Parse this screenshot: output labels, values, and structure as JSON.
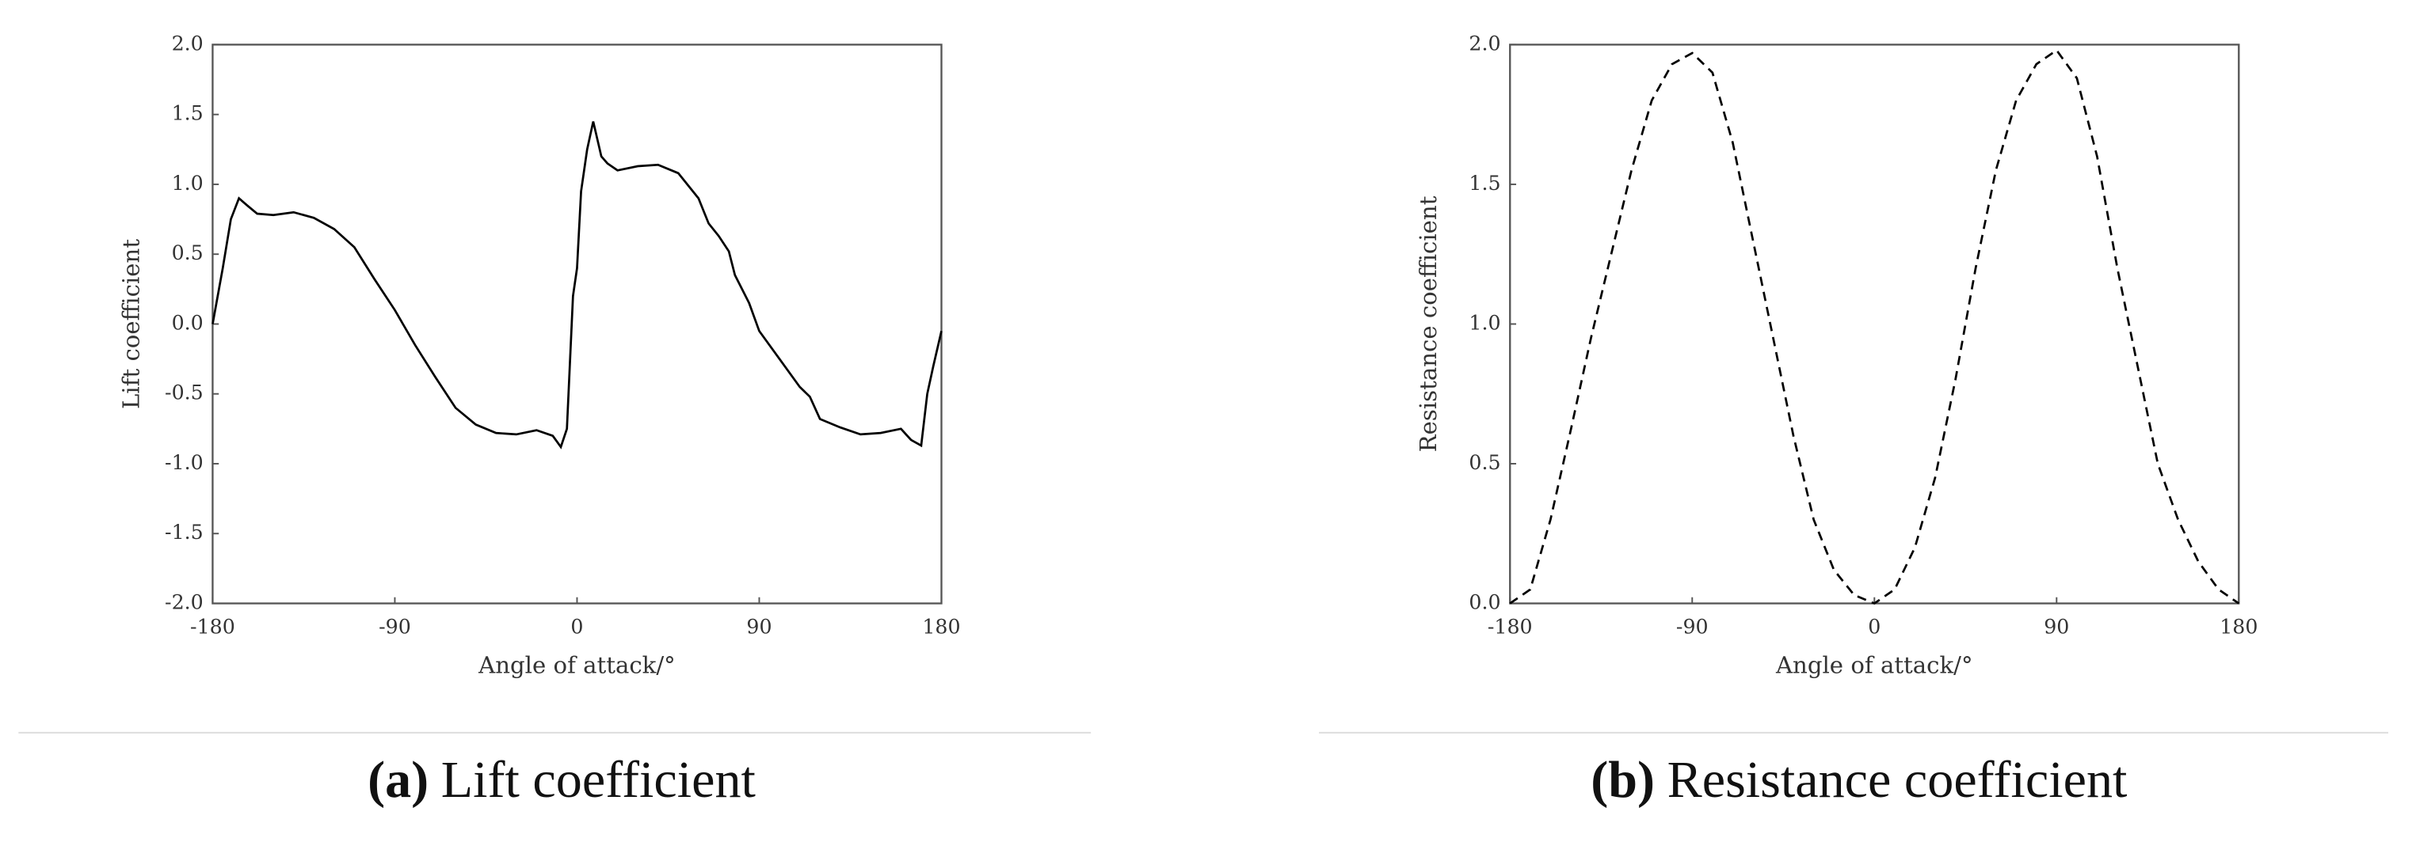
{
  "chart_data": [
    {
      "type": "line",
      "caption_label": "(a)",
      "caption": "Lift coefficient",
      "xlabel": "Angle of attack/°",
      "ylabel": "Lift coefficient",
      "x": [
        -180,
        -175,
        -171,
        -167,
        -163,
        -158,
        -150,
        -140,
        -130,
        -120,
        -110,
        -100,
        -90,
        -80,
        -70,
        -60,
        -50,
        -40,
        -30,
        -20,
        -12,
        -8,
        -5,
        -2,
        0,
        2,
        5,
        8,
        12,
        15,
        20,
        30,
        40,
        50,
        60,
        65,
        70,
        75,
        78,
        85,
        90,
        100,
        110,
        115,
        120,
        130,
        140,
        150,
        160,
        165,
        170,
        173,
        176,
        180
      ],
      "series": [
        {
          "color": "#000000",
          "dash": "none",
          "values": [
            0.0,
            0.4,
            0.75,
            0.9,
            0.85,
            0.79,
            0.78,
            0.8,
            0.76,
            0.68,
            0.55,
            0.32,
            0.1,
            -0.15,
            -0.38,
            -0.6,
            -0.72,
            -0.78,
            -0.79,
            -0.76,
            -0.8,
            -0.88,
            -0.75,
            0.2,
            0.4,
            0.95,
            1.25,
            1.45,
            1.2,
            1.15,
            1.1,
            1.13,
            1.14,
            1.08,
            0.9,
            0.72,
            0.63,
            0.52,
            0.35,
            0.15,
            -0.05,
            -0.25,
            -0.45,
            -0.52,
            -0.68,
            -0.74,
            -0.79,
            -0.78,
            -0.75,
            -0.83,
            -0.87,
            -0.5,
            -0.3,
            -0.05
          ]
        }
      ],
      "xlim": [
        -180,
        180
      ],
      "xticks": [
        -180,
        -90,
        0,
        90,
        180
      ],
      "ylim": [
        -2,
        2
      ],
      "yticks": [
        {
          "value": -2,
          "label": "-2.0"
        },
        {
          "value": -1.5,
          "label": "-1.5"
        },
        {
          "value": -1,
          "label": "-1.0"
        },
        {
          "value": -0.5,
          "label": "-0.5"
        },
        {
          "value": 0,
          "label": "0.0"
        },
        {
          "value": 0.5,
          "label": "0.5"
        },
        {
          "value": 1,
          "label": "1.0"
        },
        {
          "value": 1.5,
          "label": "1.5"
        },
        {
          "value": 2,
          "label": "2.0"
        }
      ],
      "grid": false
    },
    {
      "type": "line",
      "caption_label": "(b)",
      "caption": "Resistance coefficient",
      "xlabel": "Angle of attack/°",
      "ylabel": "Resistance coefficient",
      "x": [
        -180,
        -170,
        -160,
        -150,
        -140,
        -130,
        -120,
        -110,
        -100,
        -90,
        -80,
        -70,
        -60,
        -50,
        -40,
        -30,
        -20,
        -10,
        0,
        10,
        20,
        30,
        40,
        50,
        60,
        70,
        80,
        90,
        100,
        110,
        120,
        130,
        140,
        150,
        160,
        170,
        180
      ],
      "series": [
        {
          "color": "#000000",
          "dash": "6 4",
          "values": [
            0,
            0.05,
            0.3,
            0.62,
            0.95,
            1.25,
            1.55,
            1.8,
            1.93,
            1.97,
            1.9,
            1.65,
            1.3,
            0.95,
            0.6,
            0.3,
            0.12,
            0.03,
            0,
            0.05,
            0.2,
            0.45,
            0.8,
            1.2,
            1.55,
            1.8,
            1.93,
            1.98,
            1.88,
            1.6,
            1.2,
            0.85,
            0.5,
            0.3,
            0.15,
            0.05,
            0
          ]
        }
      ],
      "xlim": [
        -180,
        180
      ],
      "xticks": [
        -180,
        -90,
        0,
        90,
        180
      ],
      "ylim": [
        0,
        2
      ],
      "yticks": [
        {
          "value": 0,
          "label": "0.0"
        },
        {
          "value": 0.5,
          "label": "0.5"
        },
        {
          "value": 1,
          "label": "1.0"
        },
        {
          "value": 1.5,
          "label": "1.5"
        },
        {
          "value": 2,
          "label": "2.0"
        }
      ],
      "grid": false
    }
  ]
}
